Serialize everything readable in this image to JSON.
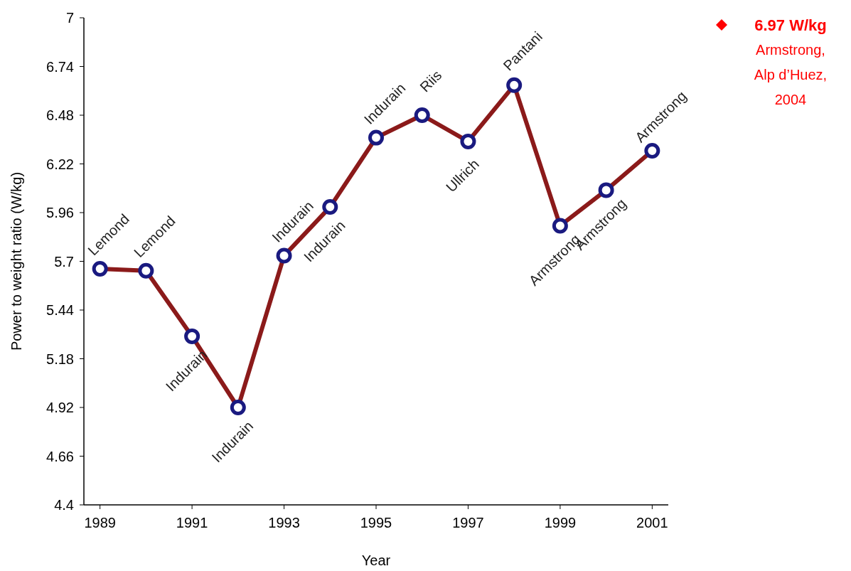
{
  "chart_data": {
    "type": "line",
    "xlabel": "Year",
    "ylabel": "Power to weight ratio (W/kg)",
    "x": [
      1989,
      1990,
      1991,
      1992,
      1993,
      1994,
      1995,
      1996,
      1997,
      1998,
      1999,
      2000,
      2001
    ],
    "series": [
      {
        "color": "#8b1a1a",
        "values": [
          5.66,
          5.65,
          5.3,
          4.92,
          5.73,
          5.99,
          6.36,
          6.48,
          6.34,
          6.64,
          5.89,
          6.08,
          6.29
        ]
      }
    ],
    "xlim": [
      1988.65,
      2001.35
    ],
    "xticks": [
      1989,
      1991,
      1993,
      1995,
      1997,
      1999,
      2001
    ],
    "ylim": [
      4.4,
      7
    ],
    "yticks": [
      4.4,
      4.66,
      4.92,
      5.18,
      5.44,
      5.7,
      5.96,
      6.22,
      6.48,
      6.74,
      7
    ],
    "grid": false,
    "marker": "circle",
    "line_style": "solid",
    "annotations": [
      {
        "text": "Lemond",
        "x": 1989,
        "y": 5.66
      },
      {
        "text": "Lemond",
        "x": 1990,
        "y": 5.65
      },
      {
        "text": "Indurain",
        "x": 1991,
        "y": 5.3
      },
      {
        "text": "Indurain",
        "x": 1992,
        "y": 4.92
      },
      {
        "text": "Indurain",
        "x": 1993,
        "y": 5.73
      },
      {
        "text": "Indurain",
        "x": 1994,
        "y": 5.99
      },
      {
        "text": "Indurain",
        "x": 1995,
        "y": 6.36
      },
      {
        "text": "Riis",
        "x": 1996,
        "y": 6.48
      },
      {
        "text": "Ullrich",
        "x": 1997,
        "y": 6.34
      },
      {
        "text": "Pantani",
        "x": 1998,
        "y": 6.64
      },
      {
        "text": "Armstrong",
        "x": 1999,
        "y": 5.89
      },
      {
        "text": "Armstrong",
        "x": 2000,
        "y": 6.08
      },
      {
        "text": "Armstrong",
        "x": 2001,
        "y": 6.29
      },
      "6.97 W/kg",
      "Armstrong, Alp d’Huez, 2004"
    ]
  }
}
